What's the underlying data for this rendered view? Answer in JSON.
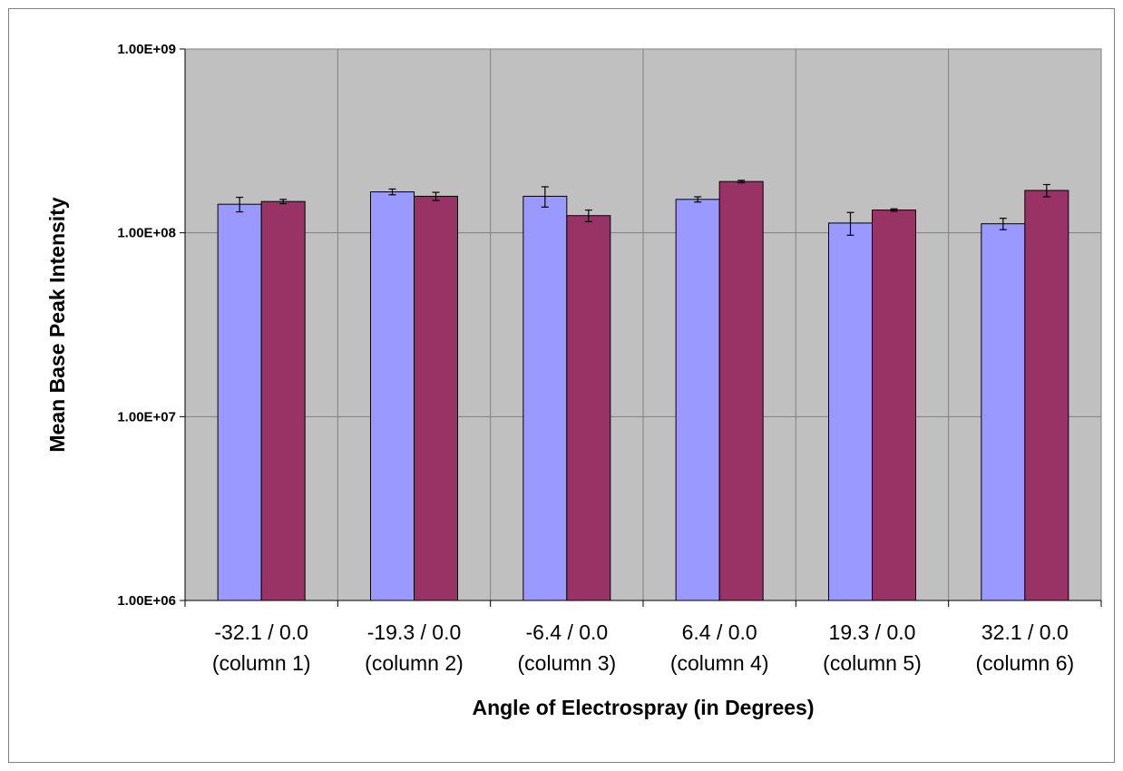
{
  "chart_data": {
    "type": "bar",
    "title": "",
    "xlabel": "Angle of Electrospray (in Degrees)",
    "ylabel": "Mean Base Peak Intensity",
    "yscale": "log",
    "ylim": [
      1000000,
      1000000000
    ],
    "ytick_values": [
      1000000,
      10000000,
      100000000,
      1000000000
    ],
    "ytick_labels": [
      "1.00E+06",
      "1.00E+07",
      "1.00E+08",
      "1.00E+09"
    ],
    "grid": true,
    "legend": "none",
    "categories": [
      [
        "-32.1 / 0.0",
        "(column 1)"
      ],
      [
        "-19.3 / 0.0",
        "(column 2)"
      ],
      [
        "-6.4 / 0.0",
        "(column 3)"
      ],
      [
        "6.4 / 0.0",
        "(column 4)"
      ],
      [
        "19.3 / 0.0",
        "(column 5)"
      ],
      [
        "32.1 / 0.0",
        "(column 6)"
      ]
    ],
    "series": [
      {
        "color": "#9999ff",
        "values": [
          143000000,
          167000000,
          158000000,
          152000000,
          113000000,
          112000000
        ],
        "errors": [
          13000000,
          6000000,
          20000000,
          5000000,
          16000000,
          8000000
        ]
      },
      {
        "color": "#993366",
        "values": [
          148000000,
          158000000,
          124000000,
          190000000,
          133000000,
          170000000
        ],
        "errors": [
          4000000,
          8000000,
          9000000,
          3000000,
          2000000,
          13000000
        ]
      }
    ],
    "plot_background": "#c0c0c0",
    "gridline_color": "#808080"
  }
}
